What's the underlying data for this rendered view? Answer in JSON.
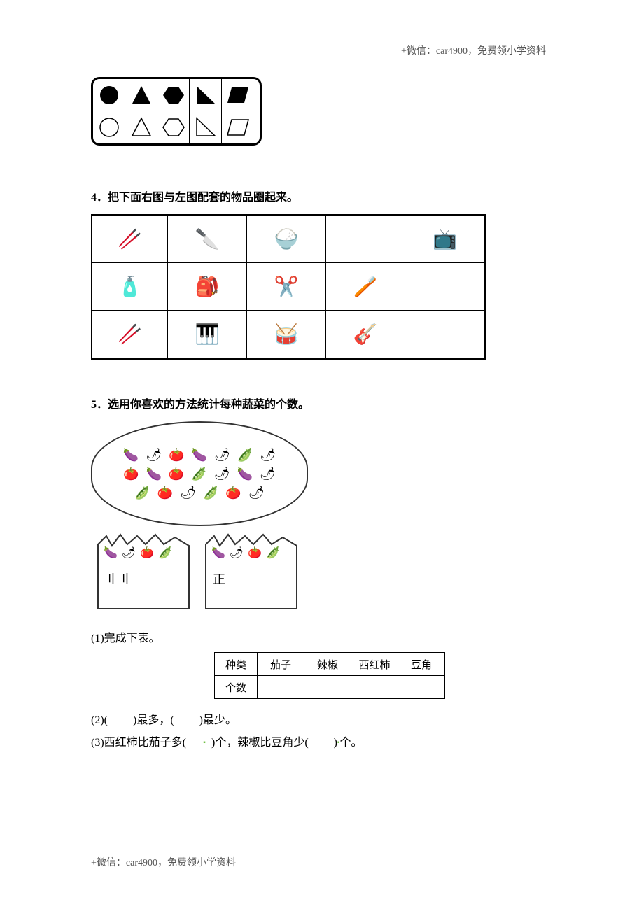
{
  "header_note": "+微信：car4900，免费领小学资料",
  "footer_note": "+微信：car4900，免费领小学资料",
  "shapes": {
    "fill_color": "#000000",
    "stroke_color": "#000000",
    "border_color": "#000000",
    "row1": [
      "circle",
      "triangle",
      "hexagon",
      "right-triangle",
      "parallelogram"
    ],
    "row2": [
      "circle",
      "triangle",
      "hexagon",
      "right-triangle",
      "parallelogram"
    ]
  },
  "q4": {
    "heading": "4．把下面右图与左图配套的物品圈起来。",
    "grid": {
      "rows": 3,
      "cols": 5,
      "items": [
        [
          "chopsticks",
          "knife",
          "bowl",
          "tv-blank",
          "tv"
        ],
        [
          "toothpaste",
          "backpack",
          "scissors",
          "toothbrush",
          "blank"
        ],
        [
          "drumsticks",
          "piano",
          "drum",
          "guitar",
          "blank"
        ]
      ],
      "icon_glyphs": {
        "chopsticks": "🥢",
        "knife": "🔪",
        "bowl": "🍚",
        "tv": "📺",
        "tv-blank": "",
        "toothpaste": "🧴",
        "backpack": "🎒",
        "scissors": "✂️",
        "toothbrush": "🪥",
        "drumsticks": "🥢",
        "piano": "🎹",
        "drum": "🥁",
        "guitar": "🎸",
        "blank": ""
      }
    }
  },
  "q5": {
    "heading": "5．选用你喜欢的方法统计每种蔬菜的个数。",
    "veg_glyphs": {
      "eggplant": "🍆",
      "pepper": "🌶",
      "tomato": "🍅",
      "bean": "🫛"
    },
    "oval_items": [
      "eggplant",
      "pepper",
      "tomato",
      "eggplant",
      "pepper",
      "bean",
      "pepper",
      "tomato",
      "eggplant",
      "tomato",
      "bean",
      "pepper",
      "eggplant",
      "pepper",
      "bean",
      "tomato",
      "pepper",
      "bean",
      "tomato",
      "pepper"
    ],
    "box1_items": [
      "eggplant",
      "pepper",
      "tomato",
      "bean"
    ],
    "box1_tally": "〢〢",
    "box2_items": [
      "eggplant",
      "pepper",
      "tomato",
      "bean"
    ],
    "box2_tally": "正",
    "sub1": "(1)完成下表。",
    "table": {
      "head_label": "种类",
      "count_label": "个数",
      "cols": [
        "茄子",
        "辣椒",
        "西红柿",
        "豆角"
      ],
      "counts": [
        "",
        "",
        "",
        ""
      ]
    },
    "sub2_pre": "(2)(",
    "sub2_mid1": ")最多，(",
    "sub2_mid2": ")最少。",
    "sub3_pre": "(3)西红柿比茄子多(",
    "sub3_mid1": ")个，辣椒比豆角少(",
    "sub3_mid2": ")",
    "sub3_end": "个。"
  },
  "colors": {
    "text": "#000000",
    "muted": "#555555",
    "green_accent": "#6fbf44",
    "background": "#ffffff",
    "border": "#000000"
  }
}
